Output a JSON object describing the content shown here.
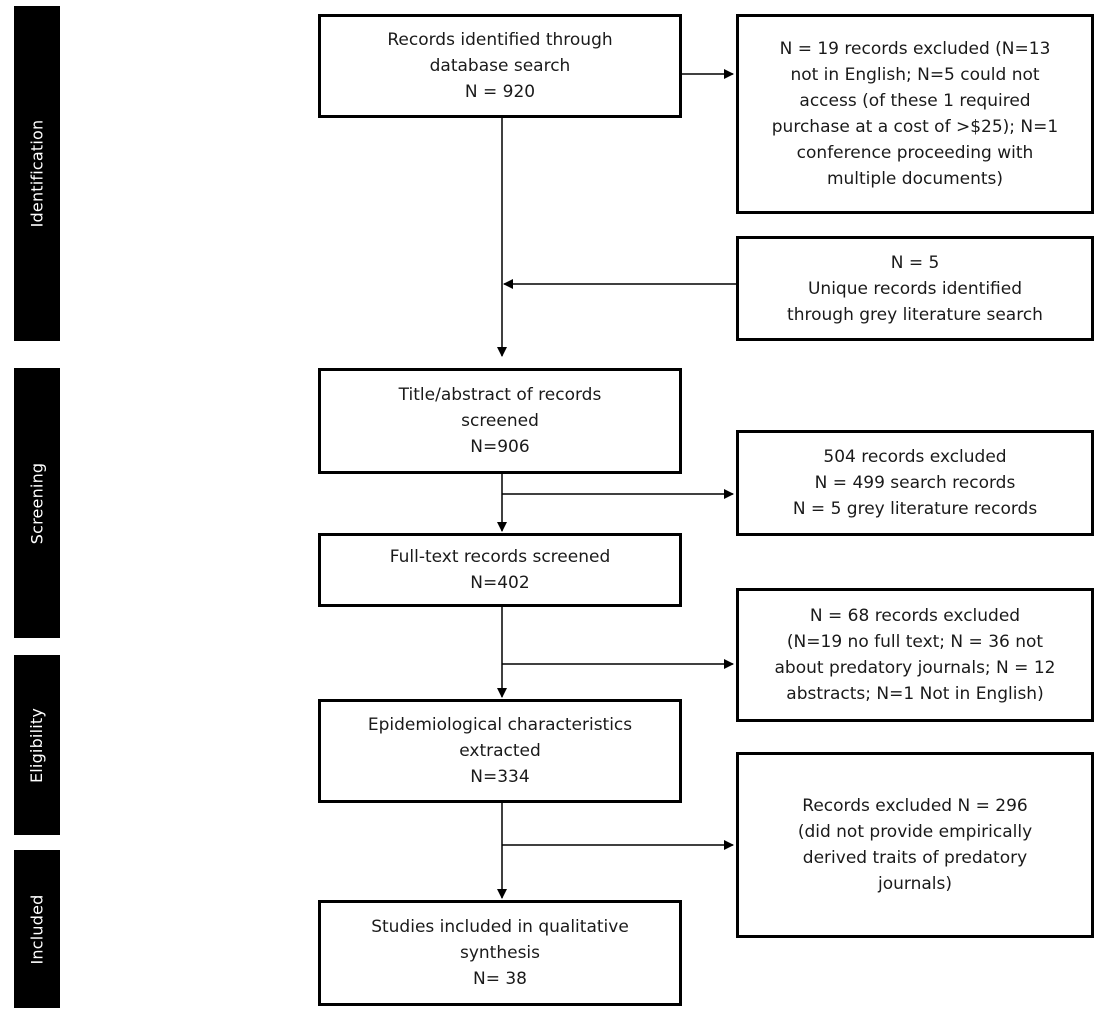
{
  "phases": {
    "identification": "Identification",
    "screening": "Screening",
    "eligibility": "Eligibility",
    "included": "Included"
  },
  "boxes": {
    "identified": {
      "lines": [
        "Records identified through",
        "database search",
        "N = 920"
      ]
    },
    "excluded_initial": {
      "lines": [
        "N = 19 records excluded (N=13",
        "not in English; N=5 could not",
        "access (of these 1 required",
        "purchase at a cost of >$25); N=1",
        "conference proceeding with",
        "multiple documents)"
      ]
    },
    "grey_literature": {
      "lines": [
        "N = 5",
        "Unique records identified",
        "through grey literature search"
      ]
    },
    "title_abstract": {
      "lines": [
        "Title/abstract of records",
        "screened",
        "N=906"
      ]
    },
    "excluded_screening": {
      "lines": [
        "504 records excluded",
        "N = 499 search records",
        "N = 5 grey literature records"
      ]
    },
    "full_text": {
      "lines": [
        "Full-text records screened",
        "N=402"
      ]
    },
    "excluded_fulltext": {
      "lines": [
        "N = 68 records excluded",
        "(N=19 no full text; N = 36 not",
        "about predatory journals; N = 12",
        "abstracts; N=1 Not in English)"
      ]
    },
    "epidemiological": {
      "lines": [
        "Epidemiological characteristics",
        "extracted",
        "N=334"
      ]
    },
    "excluded_final": {
      "lines": [
        "Records excluded N = 296",
        "(did not provide empirically",
        "derived traits of predatory",
        "journals)"
      ]
    },
    "included_studies": {
      "lines": [
        "Studies included in qualitative",
        "synthesis",
        "N= 38"
      ]
    }
  }
}
